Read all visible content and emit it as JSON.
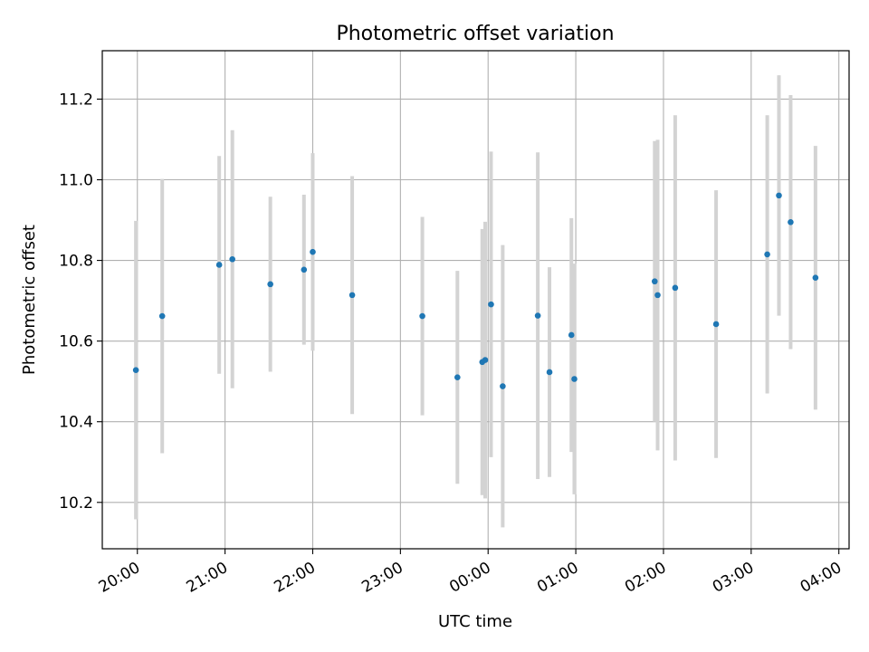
{
  "chart_data": {
    "type": "scatter",
    "title": "Photometric offset variation",
    "xlabel": "UTC time",
    "ylabel": "Photometric offset",
    "xlim": [
      "2000-01-01T19:36:00",
      "2000-01-02T04:07:00"
    ],
    "ylim": [
      10.085,
      11.32
    ],
    "grid": true,
    "x_ticks": [
      {
        "value": "2000-01-01T20:00:00",
        "label": "20:00"
      },
      {
        "value": "2000-01-01T21:00:00",
        "label": "21:00"
      },
      {
        "value": "2000-01-01T22:00:00",
        "label": "22:00"
      },
      {
        "value": "2000-01-01T23:00:00",
        "label": "23:00"
      },
      {
        "value": "2000-01-02T00:00:00",
        "label": "00:00"
      },
      {
        "value": "2000-01-02T01:00:00",
        "label": "01:00"
      },
      {
        "value": "2000-01-02T02:00:00",
        "label": "02:00"
      },
      {
        "value": "2000-01-02T03:00:00",
        "label": "03:00"
      },
      {
        "value": "2000-01-02T04:00:00",
        "label": "04:00"
      }
    ],
    "y_ticks": [
      {
        "value": 10.2,
        "label": "10.2"
      },
      {
        "value": 10.4,
        "label": "10.4"
      },
      {
        "value": 10.6,
        "label": "10.6"
      },
      {
        "value": 10.8,
        "label": "10.8"
      },
      {
        "value": 11.0,
        "label": "11.0"
      },
      {
        "value": 11.2,
        "label": "11.2"
      }
    ],
    "colors": {
      "marker": "#1f77b4",
      "errorbar": "#d3d3d3",
      "grid": "#b0b0b0"
    },
    "points": [
      {
        "x": "2000-01-01T19:59:00",
        "y": 10.528,
        "err": 0.37
      },
      {
        "x": "2000-01-01T20:17:00",
        "y": 10.662,
        "err": 0.34
      },
      {
        "x": "2000-01-01T20:56:00",
        "y": 10.789,
        "err": 0.27
      },
      {
        "x": "2000-01-01T21:05:00",
        "y": 10.803,
        "err": 0.32
      },
      {
        "x": "2000-01-01T21:31:00",
        "y": 10.741,
        "err": 0.217
      },
      {
        "x": "2000-01-01T21:54:00",
        "y": 10.777,
        "err": 0.186
      },
      {
        "x": "2000-01-01T22:00:00",
        "y": 10.821,
        "err": 0.245
      },
      {
        "x": "2000-01-01T22:27:00",
        "y": 10.714,
        "err": 0.295
      },
      {
        "x": "2000-01-01T23:15:00",
        "y": 10.662,
        "err": 0.246
      },
      {
        "x": "2000-01-01T23:39:00",
        "y": 10.51,
        "err": 0.264
      },
      {
        "x": "2000-01-01T23:56:00",
        "y": 10.548,
        "err": 0.33
      },
      {
        "x": "2000-01-01T23:58:00",
        "y": 10.553,
        "err": 0.343
      },
      {
        "x": "2000-01-02T00:02:00",
        "y": 10.691,
        "err": 0.379
      },
      {
        "x": "2000-01-02T00:10:00",
        "y": 10.488,
        "err": 0.35
      },
      {
        "x": "2000-01-02T00:34:00",
        "y": 10.663,
        "err": 0.405
      },
      {
        "x": "2000-01-02T00:42:00",
        "y": 10.523,
        "err": 0.26
      },
      {
        "x": "2000-01-02T00:57:00",
        "y": 10.615,
        "err": 0.29
      },
      {
        "x": "2000-01-02T00:59:00",
        "y": 10.506,
        "err": 0.286
      },
      {
        "x": "2000-01-02T01:54:00",
        "y": 10.748,
        "err": 0.348
      },
      {
        "x": "2000-01-02T01:56:00",
        "y": 10.714,
        "err": 0.385
      },
      {
        "x": "2000-01-02T02:08:00",
        "y": 10.732,
        "err": 0.428
      },
      {
        "x": "2000-01-02T02:36:00",
        "y": 10.642,
        "err": 0.332
      },
      {
        "x": "2000-01-02T03:11:00",
        "y": 10.815,
        "err": 0.345
      },
      {
        "x": "2000-01-02T03:19:00",
        "y": 10.961,
        "err": 0.298
      },
      {
        "x": "2000-01-02T03:27:00",
        "y": 10.895,
        "err": 0.315
      },
      {
        "x": "2000-01-02T03:44:00",
        "y": 10.757,
        "err": 0.327
      }
    ]
  }
}
